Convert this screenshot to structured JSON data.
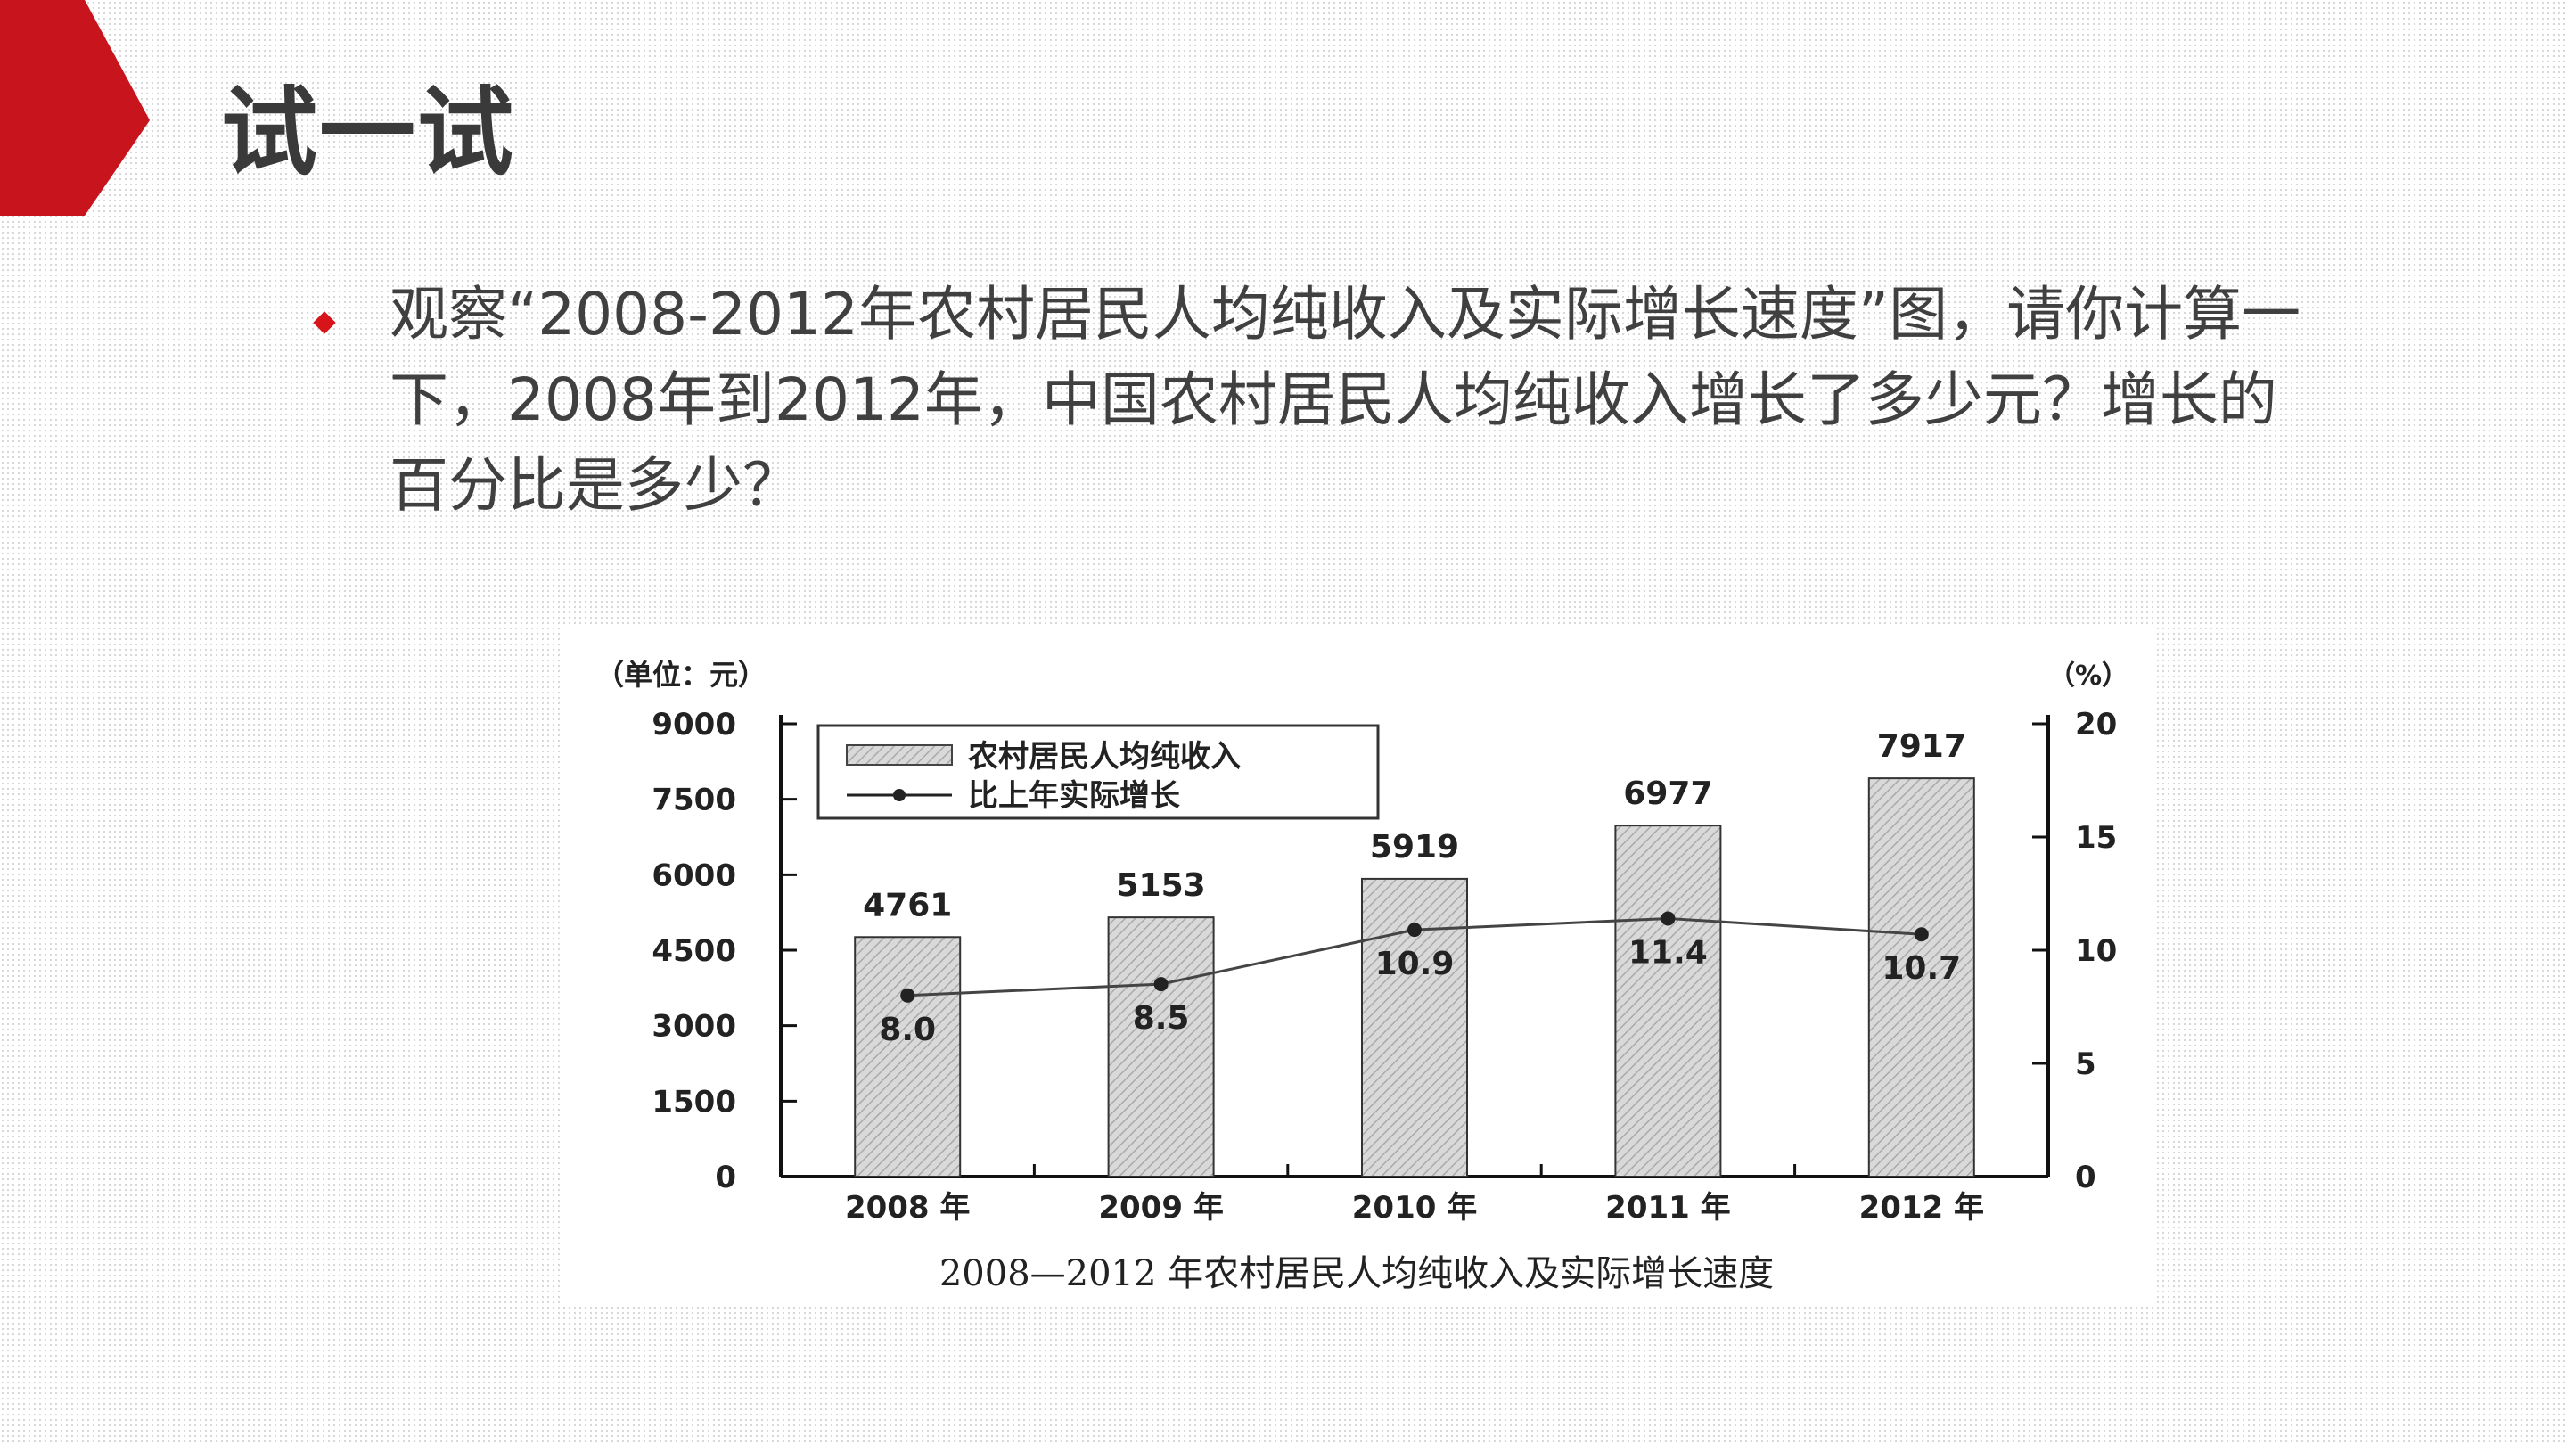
{
  "slide": {
    "title": "试一试",
    "bullet_text": "观察“2008-2012年农村居民人均纯收入及实际增长速度”图，请你计算一下，2008年到2012年，中国农村居民人均纯收入增长了多少元？增长的百分比是多少？",
    "accent_color": "#c8141c",
    "bullet_color": "#d8141b"
  },
  "chart_data": {
    "type": "bar",
    "title": "2008—2012 年农村居民人均纯收入及实际增长速度",
    "left_unit": "（单位：元）",
    "right_unit": "（%）",
    "categories": [
      "2008 年",
      "2009 年",
      "2010 年",
      "2011 年",
      "2012 年"
    ],
    "series": [
      {
        "name": "农村居民人均纯收入",
        "kind": "bar",
        "axis": "left",
        "values": [
          4761,
          5153,
          5919,
          6977,
          7917
        ]
      },
      {
        "name": "比上年实际增长",
        "kind": "line",
        "axis": "right",
        "values": [
          8.0,
          8.5,
          10.9,
          11.4,
          10.7
        ]
      }
    ],
    "bar_labels": [
      "4761",
      "5153",
      "5919",
      "6977",
      "7917"
    ],
    "line_labels": [
      "8.0",
      "8.5",
      "10.9",
      "11.4",
      "10.7"
    ],
    "y_left": {
      "ylim": [
        0,
        9000
      ],
      "ticks": [
        "0",
        "1500",
        "3000",
        "4500",
        "6000",
        "7500",
        "9000"
      ]
    },
    "y_right": {
      "ylim": [
        0,
        20
      ],
      "ticks": [
        "0",
        "5",
        "10",
        "15",
        "20"
      ]
    },
    "legend_position": "top-left",
    "grid": false
  }
}
